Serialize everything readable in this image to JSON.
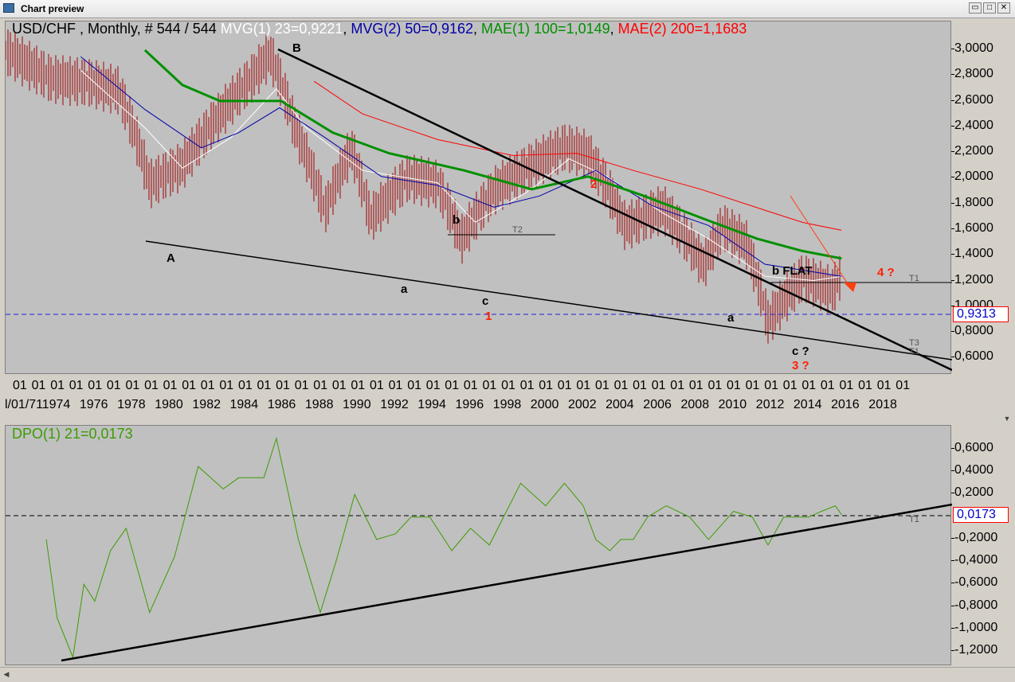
{
  "window": {
    "title": "Chart preview",
    "icons": [
      "app-icon",
      "restore-icon",
      "maximize-icon",
      "close-icon"
    ]
  },
  "price_panel": {
    "legend": {
      "instrument": "USD/CHF , Monthly, # 544 / 544",
      "mvg1": "MVG(1) 23=0,9221",
      "mvg2": "MVG(2) 50=0,9162",
      "mae1": "MAE(1) 100=1,0149",
      "mae2": "MAE(2) 200=1,1683"
    },
    "last_value": "0,9313",
    "yticks": [
      "3,0000",
      "2,8000",
      "2,6000",
      "2,4000",
      "2,2000",
      "2,0000",
      "1,8000",
      "1,6000",
      "1,4000",
      "1,2000",
      "1,0000",
      "0,8000",
      "0,6000"
    ],
    "annotations": {
      "A": "A",
      "B": "B",
      "b1": "b",
      "a1": "a",
      "c1": "c",
      "one": "1",
      "two": "2",
      "a2": "a",
      "bflat": "b FLAT",
      "c3": "c ?",
      "three": "3 ?",
      "four": "4 ?"
    },
    "trend_labels": {
      "t2": "T2",
      "t1": "T1",
      "t3": "T3",
      "t1b": "T1"
    }
  },
  "xaxis": {
    "month_label": "01",
    "first_label": "l/01/71",
    "years": [
      "1974",
      "1976",
      "1978",
      "1980",
      "1982",
      "1984",
      "1986",
      "1988",
      "1990",
      "1992",
      "1994",
      "1996",
      "1998",
      "2000",
      "2002",
      "2004",
      "2006",
      "2008",
      "2010",
      "2012",
      "2014",
      "2016",
      "2018"
    ]
  },
  "dpo_panel": {
    "legend": "DPO(1) 21=0,0173",
    "last_value": "0,0173",
    "yticks": [
      "0,6000",
      "0,4000",
      "0,2000",
      "-0,2000",
      "-0,4000",
      "-0,6000",
      "-0,8000",
      "-1,0000",
      "-1,2000"
    ],
    "trend_label": "T1"
  },
  "colors": {
    "panel_bg": "#c0c0c0",
    "bars": "#a00000",
    "mvg1": "#ffffff",
    "mvg2": "#0000a8",
    "mae1": "#009000",
    "mae2": "#ff0000",
    "dpo": "#3c9c00",
    "current_line": "#2020e0"
  },
  "chart_data": [
    {
      "type": "line",
      "title": "USD/CHF , Monthly, # 544 / 544",
      "x_range": [
        "1971-01",
        "2018-12"
      ],
      "ylim": [
        0.5,
        3.1
      ],
      "y_scale": "log",
      "grid": false,
      "series": [
        {
          "name": "USD/CHF",
          "x": [
            "1971-01",
            "1973-06",
            "1975-06",
            "1977-01",
            "1978-09",
            "1980-06",
            "1982-06",
            "1984-02",
            "1985-02",
            "1986-06",
            "1988-01",
            "1989-06",
            "1990-06",
            "1992-06",
            "1994-01",
            "1995-04",
            "1997-01",
            "1999-01",
            "2000-10",
            "2002-01",
            "2004-01",
            "2006-01",
            "2008-03",
            "2009-03",
            "2010-06",
            "2011-08",
            "2013-06",
            "2015-01",
            "2015-07"
          ],
          "values": [
            3.0,
            2.6,
            2.55,
            2.45,
            1.5,
            1.65,
            2.15,
            2.6,
            2.95,
            2.0,
            1.3,
            1.8,
            1.25,
            1.55,
            1.5,
            1.12,
            1.45,
            1.65,
            1.82,
            1.75,
            1.2,
            1.32,
            0.98,
            1.2,
            1.1,
            0.73,
            0.92,
            0.86,
            0.93
          ]
        },
        {
          "name": "MVG(1) 23=0,9221",
          "x": [
            "1975-01",
            "1978-06",
            "1980-06",
            "1983-01",
            "1985-06",
            "1987-01",
            "1990-01",
            "1994-01",
            "1996-01",
            "1999-01",
            "2001-01",
            "2003-01",
            "2006-01",
            "2008-06",
            "2011-06",
            "2014-01",
            "2015-07"
          ],
          "values": [
            2.7,
            2.0,
            1.62,
            1.9,
            2.45,
            2.0,
            1.6,
            1.5,
            1.22,
            1.45,
            1.7,
            1.55,
            1.28,
            1.12,
            0.92,
            0.9,
            0.92
          ]
        },
        {
          "name": "MVG(2) 50=0,9162",
          "x": [
            "1975-01",
            "1978-06",
            "1981-06",
            "1983-06",
            "1985-08",
            "1988-01",
            "1991-01",
            "1994-01",
            "1997-01",
            "1999-06",
            "2002-06",
            "2005-06",
            "2008-06",
            "2011-06",
            "2015-07"
          ],
          "values": [
            2.9,
            2.2,
            1.8,
            1.95,
            2.22,
            1.9,
            1.55,
            1.48,
            1.32,
            1.4,
            1.6,
            1.33,
            1.2,
            0.98,
            0.92
          ]
        },
        {
          "name": "MAE(1) 100=1,0149",
          "x": [
            "1978-06",
            "1980-06",
            "1982-06",
            "1985-09",
            "1988-06",
            "1991-06",
            "1995-06",
            "1999-01",
            "2002-01",
            "2005-01",
            "2008-01",
            "2011-01",
            "2013-06",
            "2015-07"
          ],
          "values": [
            3.0,
            2.5,
            2.3,
            2.3,
            1.95,
            1.75,
            1.6,
            1.45,
            1.55,
            1.4,
            1.25,
            1.12,
            1.05,
            1.01
          ]
        },
        {
          "name": "MAE(2) 200=1,1683",
          "x": [
            "1987-06",
            "1990-01",
            "1994-01",
            "1998-01",
            "2001-06",
            "2004-06",
            "2008-01",
            "2011-06",
            "2013-06",
            "2015-07"
          ],
          "values": [
            2.55,
            2.15,
            1.88,
            1.73,
            1.75,
            1.6,
            1.45,
            1.3,
            1.22,
            1.17
          ]
        }
      ],
      "reference_lines": [
        {
          "label": "0,9313",
          "y": 0.9313
        },
        {
          "label": "T1",
          "y": 1.17
        },
        {
          "label": "T2",
          "y": 1.55
        }
      ]
    },
    {
      "type": "line",
      "title": "DPO(1) 21=0,0173",
      "x_range": [
        "1971-01",
        "2018-12"
      ],
      "ylim": [
        -1.3,
        0.7
      ],
      "grid": false,
      "series": [
        {
          "name": "DPO(1) 21=0,0173",
          "x": [
            "1973-03",
            "1973-10",
            "1974-08",
            "1975-03",
            "1975-10",
            "1976-08",
            "1977-06",
            "1978-09",
            "1980-01",
            "1981-04",
            "1982-08",
            "1983-06",
            "1984-10",
            "1985-06",
            "1986-08",
            "1987-10",
            "1988-08",
            "1989-08",
            "1990-10",
            "1991-10",
            "1992-08",
            "1993-08",
            "1994-10",
            "1995-10",
            "1996-10",
            "1998-06",
            "1999-10",
            "2000-10",
            "2001-10",
            "2002-06",
            "2003-03",
            "2003-10",
            "2004-06",
            "2005-03",
            "2006-03",
            "2007-06",
            "2008-06",
            "2009-10",
            "2010-10",
            "2011-08",
            "2012-06",
            "2013-10",
            "2014-06",
            "2015-03",
            "2015-07"
          ],
          "values": [
            -0.2,
            -0.9,
            -1.25,
            -0.6,
            -0.75,
            -0.3,
            -0.1,
            -0.85,
            -0.35,
            0.45,
            0.25,
            0.35,
            0.35,
            0.7,
            -0.2,
            -0.85,
            -0.4,
            0.2,
            -0.2,
            -0.15,
            0.0,
            0.0,
            -0.3,
            -0.1,
            -0.25,
            0.3,
            0.1,
            0.3,
            0.1,
            -0.2,
            -0.3,
            -0.2,
            -0.2,
            0.0,
            0.1,
            0.0,
            -0.2,
            0.05,
            0.0,
            -0.25,
            0.0,
            0.0,
            0.05,
            0.1,
            0.02
          ]
        }
      ],
      "reference_lines": [
        {
          "label": "0,0173",
          "y": 0.0173
        },
        {
          "label": "T1",
          "y": 0.0
        }
      ]
    }
  ]
}
